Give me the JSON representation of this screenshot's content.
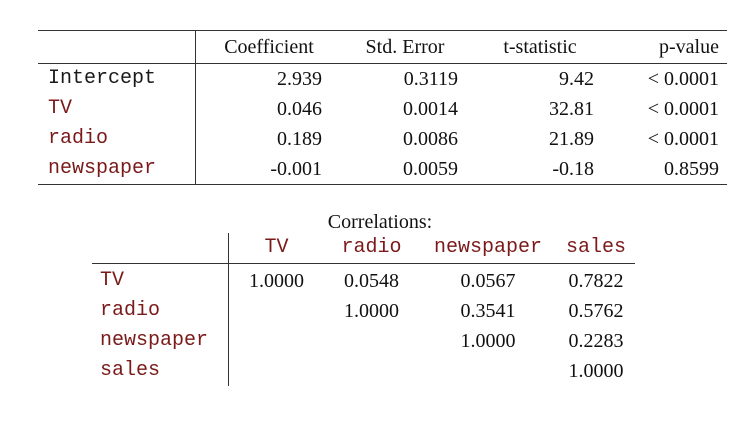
{
  "regression": {
    "headers": [
      "Coefficient",
      "Std. Error",
      "t-statistic",
      "p-value"
    ],
    "rows": [
      {
        "label": "Intercept",
        "coef": "2.939",
        "se": "0.3119",
        "t": "9.42",
        "p": "< 0.0001"
      },
      {
        "label": "TV",
        "coef": "0.046",
        "se": "0.0014",
        "t": "32.81",
        "p": "< 0.0001"
      },
      {
        "label": "radio",
        "coef": "0.189",
        "se": "0.0086",
        "t": "21.89",
        "p": "< 0.0001"
      },
      {
        "label": "newspaper",
        "coef": "-0.001",
        "se": "0.0059",
        "t": "-0.18",
        "p": "0.8599"
      }
    ]
  },
  "correlations": {
    "title": "Correlations:",
    "headers": [
      "TV",
      "radio",
      "newspaper",
      "sales"
    ],
    "rows": [
      {
        "label": "TV",
        "values": [
          "1.0000",
          "0.0548",
          "0.0567",
          "0.7822"
        ]
      },
      {
        "label": "radio",
        "values": [
          "",
          "1.0000",
          "0.3541",
          "0.5762"
        ]
      },
      {
        "label": "newspaper",
        "values": [
          "",
          "",
          "1.0000",
          "0.2283"
        ]
      },
      {
        "label": "sales",
        "values": [
          "",
          "",
          "",
          "1.0000"
        ]
      }
    ]
  },
  "colors": {
    "text": "#1a1a1a",
    "variable_names": "#7a1a1a",
    "rules": "#333333",
    "background": "#ffffff"
  }
}
